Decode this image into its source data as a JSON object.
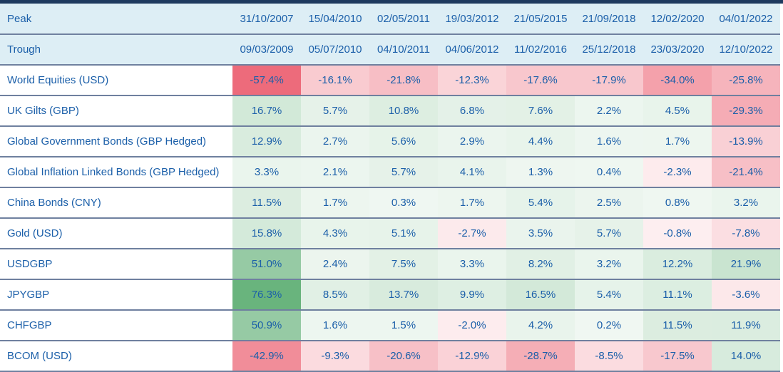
{
  "header": {
    "peak_label": "Peak",
    "trough_label": "Trough"
  },
  "colors": {
    "text": "#1b5fa9",
    "header_bg": "#ddeef5",
    "top_border": "#1e3a5f",
    "row_divider": "#6f809f",
    "heat_positive": "#69b47d",
    "heat_negative": "#ed6b7b"
  },
  "chart_data": {
    "type": "heatmap",
    "value_format": "percent_1dp",
    "columns": [
      {
        "peak": "31/10/2007",
        "trough": "09/03/2009"
      },
      {
        "peak": "15/04/2010",
        "trough": "05/07/2010"
      },
      {
        "peak": "02/05/2011",
        "trough": "04/10/2011"
      },
      {
        "peak": "19/03/2012",
        "trough": "04/06/2012"
      },
      {
        "peak": "21/05/2015",
        "trough": "11/02/2016"
      },
      {
        "peak": "21/09/2018",
        "trough": "25/12/2018"
      },
      {
        "peak": "12/02/2020",
        "trough": "23/03/2020"
      },
      {
        "peak": "04/01/2022",
        "trough": "12/10/2022"
      }
    ],
    "rows": [
      {
        "label": "World Equities (USD)",
        "values": [
          -57.4,
          -16.1,
          -21.8,
          -12.3,
          -17.6,
          -17.9,
          -34.0,
          -25.8
        ]
      },
      {
        "label": "UK Gilts (GBP)",
        "values": [
          16.7,
          5.7,
          10.8,
          6.8,
          7.6,
          2.2,
          4.5,
          -29.3
        ]
      },
      {
        "label": "Global Government Bonds (GBP Hedged)",
        "values": [
          12.9,
          2.7,
          5.6,
          2.9,
          4.4,
          1.6,
          1.7,
          -13.9
        ]
      },
      {
        "label": "Global Inflation Linked Bonds (GBP Hedged)",
        "values": [
          3.3,
          2.1,
          5.7,
          4.1,
          1.3,
          0.4,
          -2.3,
          -21.4
        ]
      },
      {
        "label": "China Bonds (CNY)",
        "values": [
          11.5,
          1.7,
          0.3,
          1.7,
          5.4,
          2.5,
          0.8,
          3.2
        ]
      },
      {
        "label": "Gold (USD)",
        "values": [
          15.8,
          4.3,
          5.1,
          -2.7,
          3.5,
          5.7,
          -0.8,
          -7.8
        ]
      },
      {
        "label": "USDGBP",
        "values": [
          51.0,
          2.4,
          7.5,
          3.3,
          8.2,
          3.2,
          12.2,
          21.9
        ]
      },
      {
        "label": "JPYGBP",
        "values": [
          76.3,
          8.5,
          13.7,
          9.9,
          16.5,
          5.4,
          11.1,
          -3.6
        ]
      },
      {
        "label": "CHFGBP",
        "values": [
          50.9,
          1.6,
          1.5,
          -2.0,
          4.2,
          0.2,
          11.5,
          11.9
        ]
      },
      {
        "label": "BCOM (USD)",
        "values": [
          -42.9,
          -9.3,
          -20.6,
          -12.9,
          -28.7,
          -8.5,
          -17.5,
          14.0
        ]
      }
    ],
    "scale": {
      "max_positive": 76.3,
      "max_negative": -57.4,
      "base_tint": 0.1
    }
  }
}
